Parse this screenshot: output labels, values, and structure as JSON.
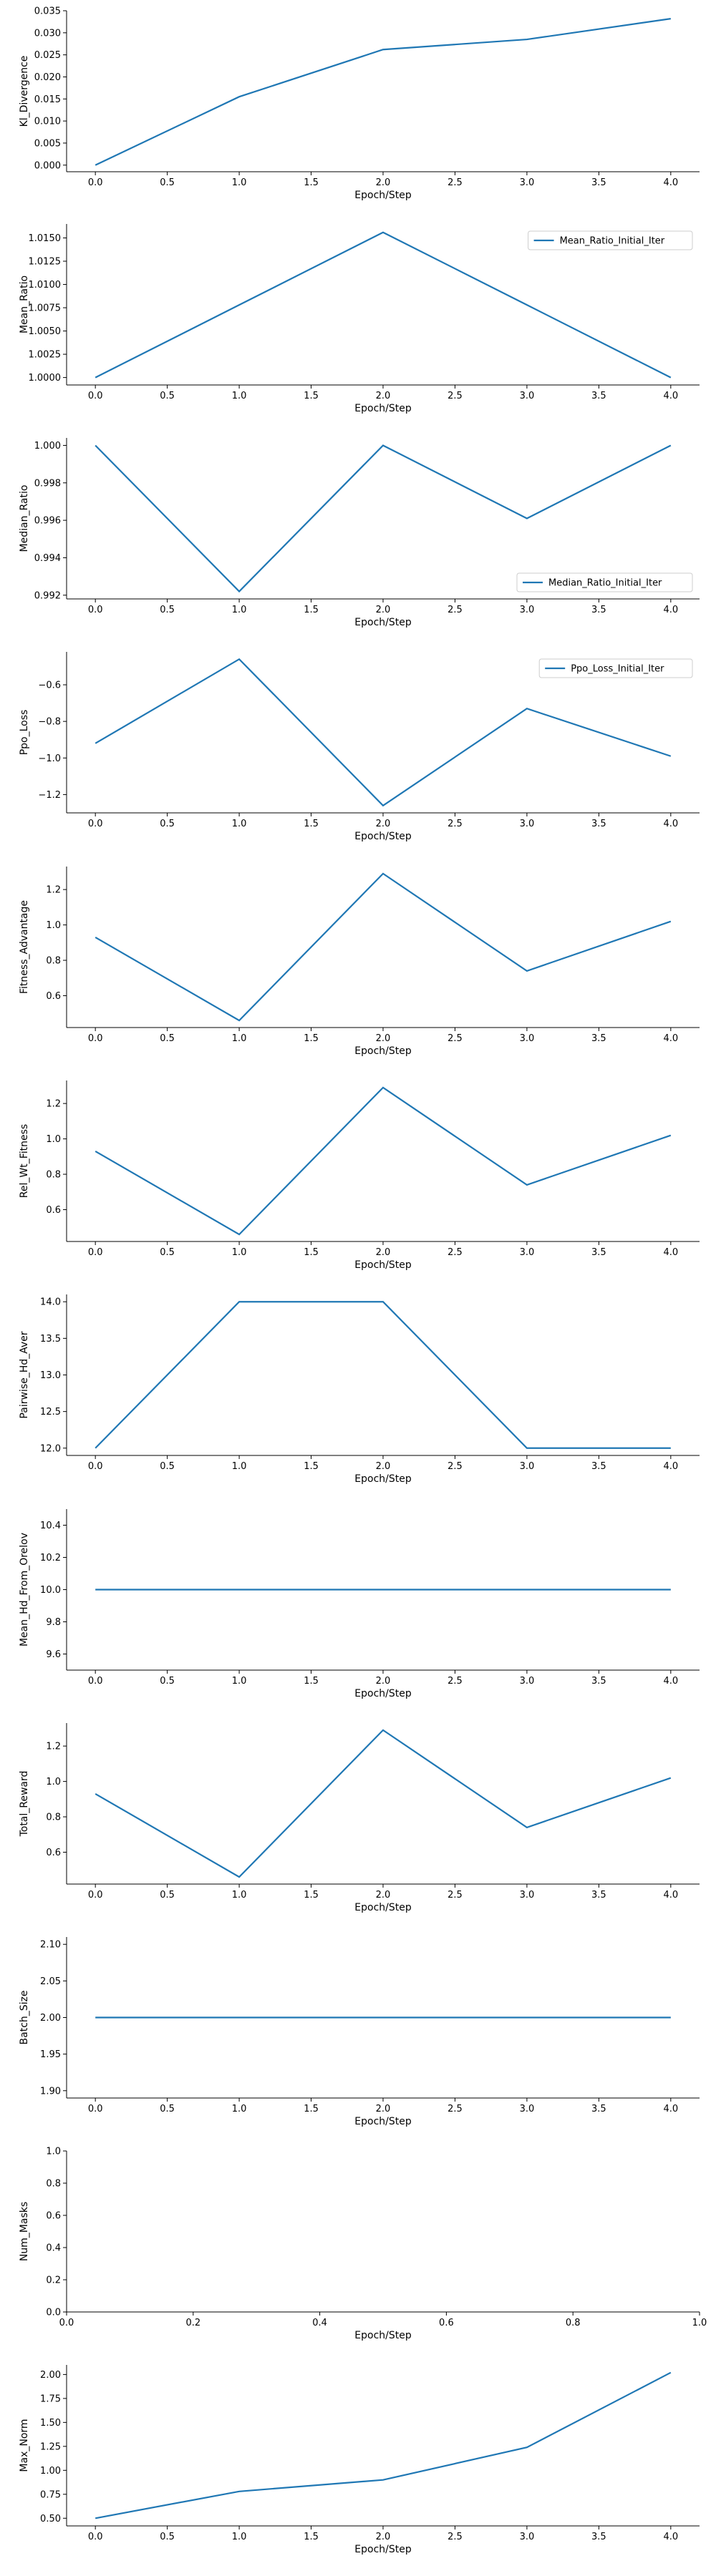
{
  "colors": {
    "line": "#1f77b4",
    "axis": "#000000"
  },
  "chart_data": [
    {
      "type": "line",
      "ylabel": "Kl_Divergence",
      "xlabel": "Epoch/Step",
      "x": [
        0,
        1,
        2,
        3,
        4
      ],
      "series": [
        {
          "name": "",
          "values": [
            0.0,
            0.0155,
            0.0262,
            0.0285,
            0.0332
          ]
        }
      ],
      "xlim": [
        -0.2,
        4.2
      ],
      "ylim": [
        -0.0015,
        0.035
      ],
      "xticks": [
        0,
        0.5,
        1,
        1.5,
        2,
        2.5,
        3,
        3.5,
        4
      ],
      "xtick_labels": [
        "0.0",
        "0.5",
        "1.0",
        "1.5",
        "2.0",
        "2.5",
        "3.0",
        "3.5",
        "4.0"
      ],
      "yticks": [
        0,
        0.005,
        0.01,
        0.015,
        0.02,
        0.025,
        0.03,
        0.035
      ],
      "ytick_labels": [
        "0.000",
        "0.005",
        "0.010",
        "0.015",
        "0.020",
        "0.025",
        "0.030",
        "0.035"
      ],
      "legend": null
    },
    {
      "type": "line",
      "ylabel": "Mean_Ratio",
      "xlabel": "Epoch/Step",
      "x": [
        0,
        1,
        2,
        3,
        4
      ],
      "series": [
        {
          "name": "Mean_Ratio_Initial_Iter",
          "values": [
            1.0,
            1.0078,
            1.0156,
            1.0078,
            1.0
          ]
        }
      ],
      "xlim": [
        -0.2,
        4.2
      ],
      "ylim": [
        0.9992,
        1.0165
      ],
      "xticks": [
        0,
        0.5,
        1,
        1.5,
        2,
        2.5,
        3,
        3.5,
        4
      ],
      "xtick_labels": [
        "0.0",
        "0.5",
        "1.0",
        "1.5",
        "2.0",
        "2.5",
        "3.0",
        "3.5",
        "4.0"
      ],
      "yticks": [
        1.0,
        1.0025,
        1.005,
        1.0075,
        1.01,
        1.0125,
        1.015
      ],
      "ytick_labels": [
        "1.0000",
        "1.0025",
        "1.0050",
        "1.0075",
        "1.0100",
        "1.0125",
        "1.0150"
      ],
      "legend": "top-right"
    },
    {
      "type": "line",
      "ylabel": "Median_Ratio",
      "xlabel": "Epoch/Step",
      "x": [
        0,
        1,
        2,
        3,
        4
      ],
      "series": [
        {
          "name": "Median_Ratio_Initial_Iter",
          "values": [
            1.0,
            0.9922,
            1.0,
            0.9961,
            1.0
          ]
        }
      ],
      "xlim": [
        -0.2,
        4.2
      ],
      "ylim": [
        0.9918,
        1.0004
      ],
      "xticks": [
        0,
        0.5,
        1,
        1.5,
        2,
        2.5,
        3,
        3.5,
        4
      ],
      "xtick_labels": [
        "0.0",
        "0.5",
        "1.0",
        "1.5",
        "2.0",
        "2.5",
        "3.0",
        "3.5",
        "4.0"
      ],
      "yticks": [
        0.992,
        0.994,
        0.996,
        0.998,
        1.0
      ],
      "ytick_labels": [
        "0.992",
        "0.994",
        "0.996",
        "0.998",
        "1.000"
      ],
      "legend": "bottom-right"
    },
    {
      "type": "line",
      "ylabel": "Ppo_Loss",
      "xlabel": "Epoch/Step",
      "x": [
        0,
        1,
        2,
        3,
        4
      ],
      "series": [
        {
          "name": "Ppo_Loss_Initial_Iter",
          "values": [
            -0.92,
            -0.46,
            -1.26,
            -0.73,
            -0.99
          ]
        }
      ],
      "xlim": [
        -0.2,
        4.2
      ],
      "ylim": [
        -1.3,
        -0.42
      ],
      "xticks": [
        0,
        0.5,
        1,
        1.5,
        2,
        2.5,
        3,
        3.5,
        4
      ],
      "xtick_labels": [
        "0.0",
        "0.5",
        "1.0",
        "1.5",
        "2.0",
        "2.5",
        "3.0",
        "3.5",
        "4.0"
      ],
      "yticks": [
        -1.2,
        -1.0,
        -0.8,
        -0.6
      ],
      "ytick_labels": [
        "−1.2",
        "−1.0",
        "−0.8",
        "−0.6"
      ],
      "legend": "top-right"
    },
    {
      "type": "line",
      "ylabel": "Fitness_Advantage",
      "xlabel": "Epoch/Step",
      "x": [
        0,
        1,
        2,
        3,
        4
      ],
      "series": [
        {
          "name": "",
          "values": [
            0.93,
            0.46,
            1.29,
            0.74,
            1.02
          ]
        }
      ],
      "xlim": [
        -0.2,
        4.2
      ],
      "ylim": [
        0.42,
        1.33
      ],
      "xticks": [
        0,
        0.5,
        1,
        1.5,
        2,
        2.5,
        3,
        3.5,
        4
      ],
      "xtick_labels": [
        "0.0",
        "0.5",
        "1.0",
        "1.5",
        "2.0",
        "2.5",
        "3.0",
        "3.5",
        "4.0"
      ],
      "yticks": [
        0.6,
        0.8,
        1.0,
        1.2
      ],
      "ytick_labels": [
        "0.6",
        "0.8",
        "1.0",
        "1.2"
      ],
      "legend": null
    },
    {
      "type": "line",
      "ylabel": "Rel_Wt_Fitness",
      "xlabel": "Epoch/Step",
      "x": [
        0,
        1,
        2,
        3,
        4
      ],
      "series": [
        {
          "name": "",
          "values": [
            0.93,
            0.46,
            1.29,
            0.74,
            1.02
          ]
        }
      ],
      "xlim": [
        -0.2,
        4.2
      ],
      "ylim": [
        0.42,
        1.33
      ],
      "xticks": [
        0,
        0.5,
        1,
        1.5,
        2,
        2.5,
        3,
        3.5,
        4
      ],
      "xtick_labels": [
        "0.0",
        "0.5",
        "1.0",
        "1.5",
        "2.0",
        "2.5",
        "3.0",
        "3.5",
        "4.0"
      ],
      "yticks": [
        0.6,
        0.8,
        1.0,
        1.2
      ],
      "ytick_labels": [
        "0.6",
        "0.8",
        "1.0",
        "1.2"
      ],
      "legend": null
    },
    {
      "type": "line",
      "ylabel": "Pairwise_Hd_Aver",
      "xlabel": "Epoch/Step",
      "x": [
        0,
        1,
        2,
        3,
        4
      ],
      "series": [
        {
          "name": "",
          "values": [
            12.0,
            14.0,
            14.0,
            12.0,
            12.0
          ]
        }
      ],
      "xlim": [
        -0.2,
        4.2
      ],
      "ylim": [
        11.9,
        14.1
      ],
      "xticks": [
        0,
        0.5,
        1,
        1.5,
        2,
        2.5,
        3,
        3.5,
        4
      ],
      "xtick_labels": [
        "0.0",
        "0.5",
        "1.0",
        "1.5",
        "2.0",
        "2.5",
        "3.0",
        "3.5",
        "4.0"
      ],
      "yticks": [
        12.0,
        12.5,
        13.0,
        13.5,
        14.0
      ],
      "ytick_labels": [
        "12.0",
        "12.5",
        "13.0",
        "13.5",
        "14.0"
      ],
      "legend": null
    },
    {
      "type": "line",
      "ylabel": "Mean_Hd_From_Orelov",
      "xlabel": "Epoch/Step",
      "x": [
        0,
        1,
        2,
        3,
        4
      ],
      "series": [
        {
          "name": "",
          "values": [
            10.0,
            10.0,
            10.0,
            10.0,
            10.0
          ]
        }
      ],
      "xlim": [
        -0.2,
        4.2
      ],
      "ylim": [
        9.5,
        10.5
      ],
      "xticks": [
        0,
        0.5,
        1,
        1.5,
        2,
        2.5,
        3,
        3.5,
        4
      ],
      "xtick_labels": [
        "0.0",
        "0.5",
        "1.0",
        "1.5",
        "2.0",
        "2.5",
        "3.0",
        "3.5",
        "4.0"
      ],
      "yticks": [
        9.6,
        9.8,
        10.0,
        10.2,
        10.4
      ],
      "ytick_labels": [
        "9.6",
        "9.8",
        "10.0",
        "10.2",
        "10.4"
      ],
      "legend": null
    },
    {
      "type": "line",
      "ylabel": "Total_Reward",
      "xlabel": "Epoch/Step",
      "x": [
        0,
        1,
        2,
        3,
        4
      ],
      "series": [
        {
          "name": "",
          "values": [
            0.93,
            0.46,
            1.29,
            0.74,
            1.02
          ]
        }
      ],
      "xlim": [
        -0.2,
        4.2
      ],
      "ylim": [
        0.42,
        1.33
      ],
      "xticks": [
        0,
        0.5,
        1,
        1.5,
        2,
        2.5,
        3,
        3.5,
        4
      ],
      "xtick_labels": [
        "0.0",
        "0.5",
        "1.0",
        "1.5",
        "2.0",
        "2.5",
        "3.0",
        "3.5",
        "4.0"
      ],
      "yticks": [
        0.6,
        0.8,
        1.0,
        1.2
      ],
      "ytick_labels": [
        "0.6",
        "0.8",
        "1.0",
        "1.2"
      ],
      "legend": null
    },
    {
      "type": "line",
      "ylabel": "Batch_Size",
      "xlabel": "Epoch/Step",
      "x": [
        0,
        1,
        2,
        3,
        4
      ],
      "series": [
        {
          "name": "",
          "values": [
            2.0,
            2.0,
            2.0,
            2.0,
            2.0
          ]
        }
      ],
      "xlim": [
        -0.2,
        4.2
      ],
      "ylim": [
        1.89,
        2.11
      ],
      "xticks": [
        0,
        0.5,
        1,
        1.5,
        2,
        2.5,
        3,
        3.5,
        4
      ],
      "xtick_labels": [
        "0.0",
        "0.5",
        "1.0",
        "1.5",
        "2.0",
        "2.5",
        "3.0",
        "3.5",
        "4.0"
      ],
      "yticks": [
        1.9,
        1.95,
        2.0,
        2.05,
        2.1
      ],
      "ytick_labels": [
        "1.90",
        "1.95",
        "2.00",
        "2.05",
        "2.10"
      ],
      "legend": null
    },
    {
      "type": "line",
      "ylabel": "Num_Masks",
      "xlabel": "Epoch/Step",
      "x": [],
      "series": [],
      "xlim": [
        0,
        1
      ],
      "ylim": [
        0,
        1
      ],
      "xticks": [
        0,
        0.2,
        0.4,
        0.6,
        0.8,
        1.0
      ],
      "xtick_labels": [
        "0.0",
        "0.2",
        "0.4",
        "0.6",
        "0.8",
        "1.0"
      ],
      "yticks": [
        0,
        0.2,
        0.4,
        0.6,
        0.8,
        1.0
      ],
      "ytick_labels": [
        "0.0",
        "0.2",
        "0.4",
        "0.6",
        "0.8",
        "1.0"
      ],
      "legend": null
    },
    {
      "type": "line",
      "ylabel": "Max_Norm",
      "xlabel": "Epoch/Step",
      "x": [
        0,
        1,
        2,
        3,
        4
      ],
      "series": [
        {
          "name": "",
          "values": [
            0.5,
            0.78,
            0.9,
            1.24,
            2.02
          ]
        }
      ],
      "xlim": [
        -0.2,
        4.2
      ],
      "ylim": [
        0.42,
        2.1
      ],
      "xticks": [
        0,
        0.5,
        1,
        1.5,
        2,
        2.5,
        3,
        3.5,
        4
      ],
      "xtick_labels": [
        "0.0",
        "0.5",
        "1.0",
        "1.5",
        "2.0",
        "2.5",
        "3.0",
        "3.5",
        "4.0"
      ],
      "yticks": [
        0.5,
        0.75,
        1.0,
        1.25,
        1.5,
        1.75,
        2.0
      ],
      "ytick_labels": [
        "0.50",
        "0.75",
        "1.00",
        "1.25",
        "1.50",
        "1.75",
        "2.00"
      ],
      "legend": null
    }
  ]
}
